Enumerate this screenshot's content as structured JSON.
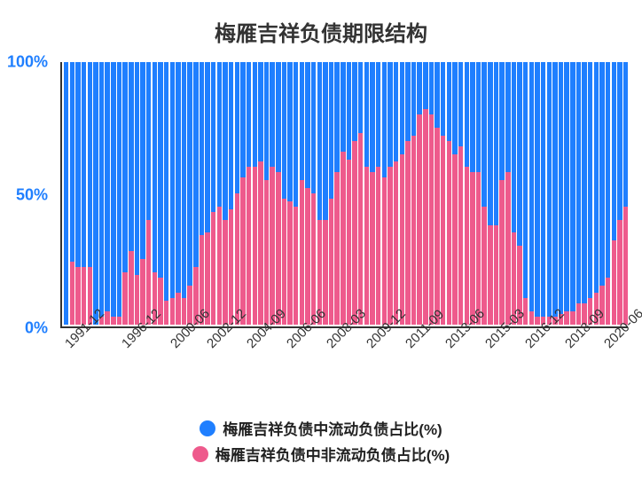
{
  "chart": {
    "type": "stacked-bar",
    "title": "梅雁吉祥负债期限结构",
    "title_fontsize": 24,
    "background_color": "#ffffff",
    "colors": {
      "series_current": "#1f7fff",
      "series_noncurrent": "#ee5a8c",
      "axis": "#333333",
      "ylabel_color": "#1f7fff",
      "text": "#333333"
    },
    "y_axis": {
      "min": 0,
      "max": 100,
      "ticks": [
        {
          "value": 0,
          "label": "0%"
        },
        {
          "value": 50,
          "label": "50%"
        },
        {
          "value": 100,
          "label": "100%"
        }
      ]
    },
    "x_axis": {
      "tick_labels": [
        "1991-12",
        "1996-12",
        "2000-06",
        "2002-12",
        "2004-09",
        "2006-06",
        "2008-03",
        "2009-12",
        "2011-09",
        "2013-06",
        "2015-03",
        "2016-12",
        "2018-09",
        "2020-06"
      ],
      "tick_positions_pct": [
        1,
        11,
        19.5,
        26,
        33,
        40,
        47,
        54,
        61,
        68,
        75,
        82,
        89,
        96
      ]
    },
    "series": [
      {
        "key": "current",
        "label": "梅雁吉祥负债中流动负债占比(%)"
      },
      {
        "key": "noncurrent",
        "label": "梅雁吉祥负债中非流动负债占比(%)"
      }
    ],
    "noncurrent_values": [
      0,
      24,
      22,
      22,
      22,
      0,
      3,
      5,
      3,
      3,
      20,
      28,
      19,
      25,
      40,
      20,
      18,
      9,
      10,
      12,
      10,
      15,
      22,
      34,
      35,
      43,
      45,
      40,
      44,
      50,
      56,
      60,
      60,
      62,
      55,
      60,
      58,
      48,
      47,
      45,
      55,
      52,
      50,
      40,
      40,
      48,
      58,
      66,
      63,
      70,
      73,
      60,
      58,
      60,
      56,
      60,
      62,
      65,
      70,
      72,
      80,
      82,
      80,
      75,
      72,
      70,
      65,
      68,
      60,
      58,
      58,
      45,
      38,
      38,
      55,
      58,
      35,
      30,
      10,
      5,
      3,
      3,
      3,
      3,
      4,
      5,
      5,
      8,
      8,
      10,
      12,
      15,
      18,
      32,
      40,
      45
    ]
  }
}
